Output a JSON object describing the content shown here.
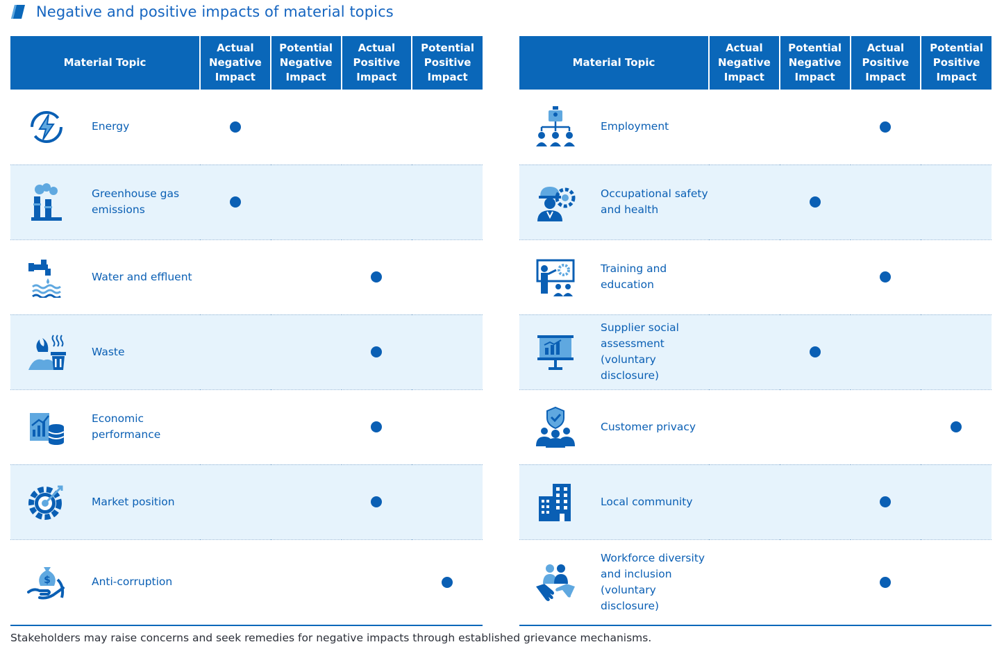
{
  "title": "Negative and positive impacts of material topics",
  "colors": {
    "accent": "#0a67b9",
    "text": "#0a5fb4",
    "row_alt": "#e6f3fc"
  },
  "headers": {
    "topic": "Material Topic",
    "actual_negative": "Actual Negative Impact",
    "potential_negative": "Potential Negative Impact",
    "actual_positive": "Actual Positive Impact",
    "potential_positive": "Potential Positive Impact"
  },
  "left_rows": [
    {
      "label": "Energy",
      "icon": "energy-icon",
      "marks": [
        true,
        false,
        false,
        false
      ]
    },
    {
      "label": "Greenhouse gas emissions",
      "icon": "factory-emissions-icon",
      "marks": [
        true,
        false,
        false,
        false
      ]
    },
    {
      "label": "Water and effluent",
      "icon": "water-tap-icon",
      "marks": [
        false,
        false,
        true,
        false
      ]
    },
    {
      "label": "Waste",
      "icon": "waste-bin-icon",
      "marks": [
        false,
        false,
        true,
        false
      ]
    },
    {
      "label": "Economic performance",
      "icon": "financial-chart-icon",
      "marks": [
        false,
        false,
        true,
        false
      ]
    },
    {
      "label": "Market position",
      "icon": "target-gear-icon",
      "marks": [
        false,
        false,
        true,
        false
      ]
    },
    {
      "label": "Anti-corruption",
      "icon": "money-hand-icon",
      "marks": [
        false,
        false,
        false,
        true
      ]
    }
  ],
  "right_rows": [
    {
      "label": "Employment",
      "icon": "org-chart-icon",
      "marks": [
        false,
        false,
        true,
        false
      ]
    },
    {
      "label": "Occupational safety and health",
      "icon": "safety-worker-icon",
      "marks": [
        false,
        true,
        false,
        false
      ]
    },
    {
      "label": "Training and education",
      "icon": "training-icon",
      "marks": [
        false,
        false,
        true,
        false
      ]
    },
    {
      "label": "Supplier social assessment (voluntary disclosure)",
      "icon": "presentation-board-icon",
      "marks": [
        false,
        true,
        false,
        false
      ]
    },
    {
      "label": "Customer privacy",
      "icon": "shield-people-icon",
      "marks": [
        false,
        false,
        false,
        true
      ]
    },
    {
      "label": "Local community",
      "icon": "building-icon",
      "marks": [
        false,
        false,
        true,
        false
      ]
    },
    {
      "label": "Workforce diversity and inclusion (voluntary disclosure)",
      "icon": "handshake-people-icon",
      "marks": [
        false,
        false,
        true,
        false
      ]
    }
  ],
  "footnote": "Stakeholders may raise concerns and seek remedies for negative impacts through established grievance mechanisms."
}
